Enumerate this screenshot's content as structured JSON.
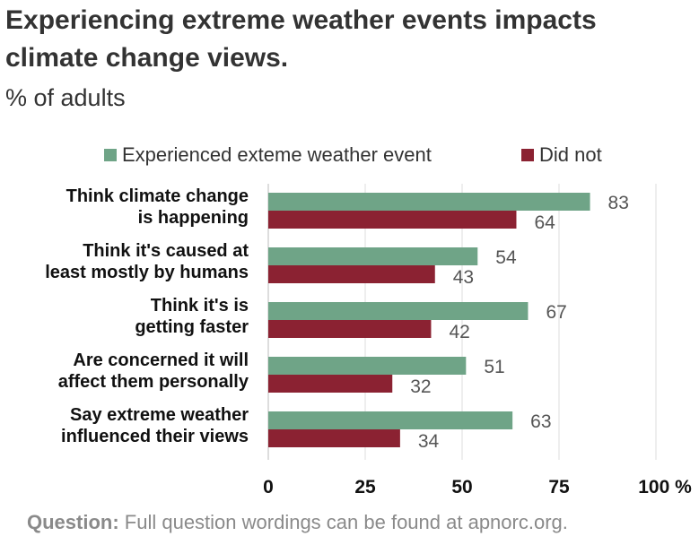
{
  "title": "Experiencing extreme weather events impacts climate change views.",
  "subtitle": "% of adults",
  "legend": {
    "series1": "Experienced exteme weather event",
    "series2": "Did not"
  },
  "colors": {
    "series1": "#6fa487",
    "series2": "#8b2232",
    "grid": "#dcdcdc",
    "value_text": "#555555"
  },
  "footer": {
    "label": "Question:",
    "text": " Full question wordings can be found at apnorc.org."
  },
  "chart_data": {
    "type": "bar",
    "orientation": "horizontal",
    "categories": [
      [
        "Think climate change",
        "is happening"
      ],
      [
        "Think it's caused at",
        "least mostly by humans"
      ],
      [
        "Think it's is",
        "getting faster"
      ],
      [
        "Are concerned it will",
        "affect them personally"
      ],
      [
        "Say extreme weather",
        "influenced their views"
      ]
    ],
    "series": [
      {
        "name": "Experienced exteme weather event",
        "values": [
          83,
          54,
          67,
          51,
          63
        ]
      },
      {
        "name": "Did not",
        "values": [
          64,
          43,
          42,
          32,
          34
        ]
      }
    ],
    "xlim": [
      0,
      100
    ],
    "xticks": [
      "0",
      "25",
      "50",
      "75",
      "100 %"
    ],
    "tick_values": [
      0,
      25,
      50,
      75,
      100
    ],
    "grid": true,
    "legend_position": "top"
  }
}
